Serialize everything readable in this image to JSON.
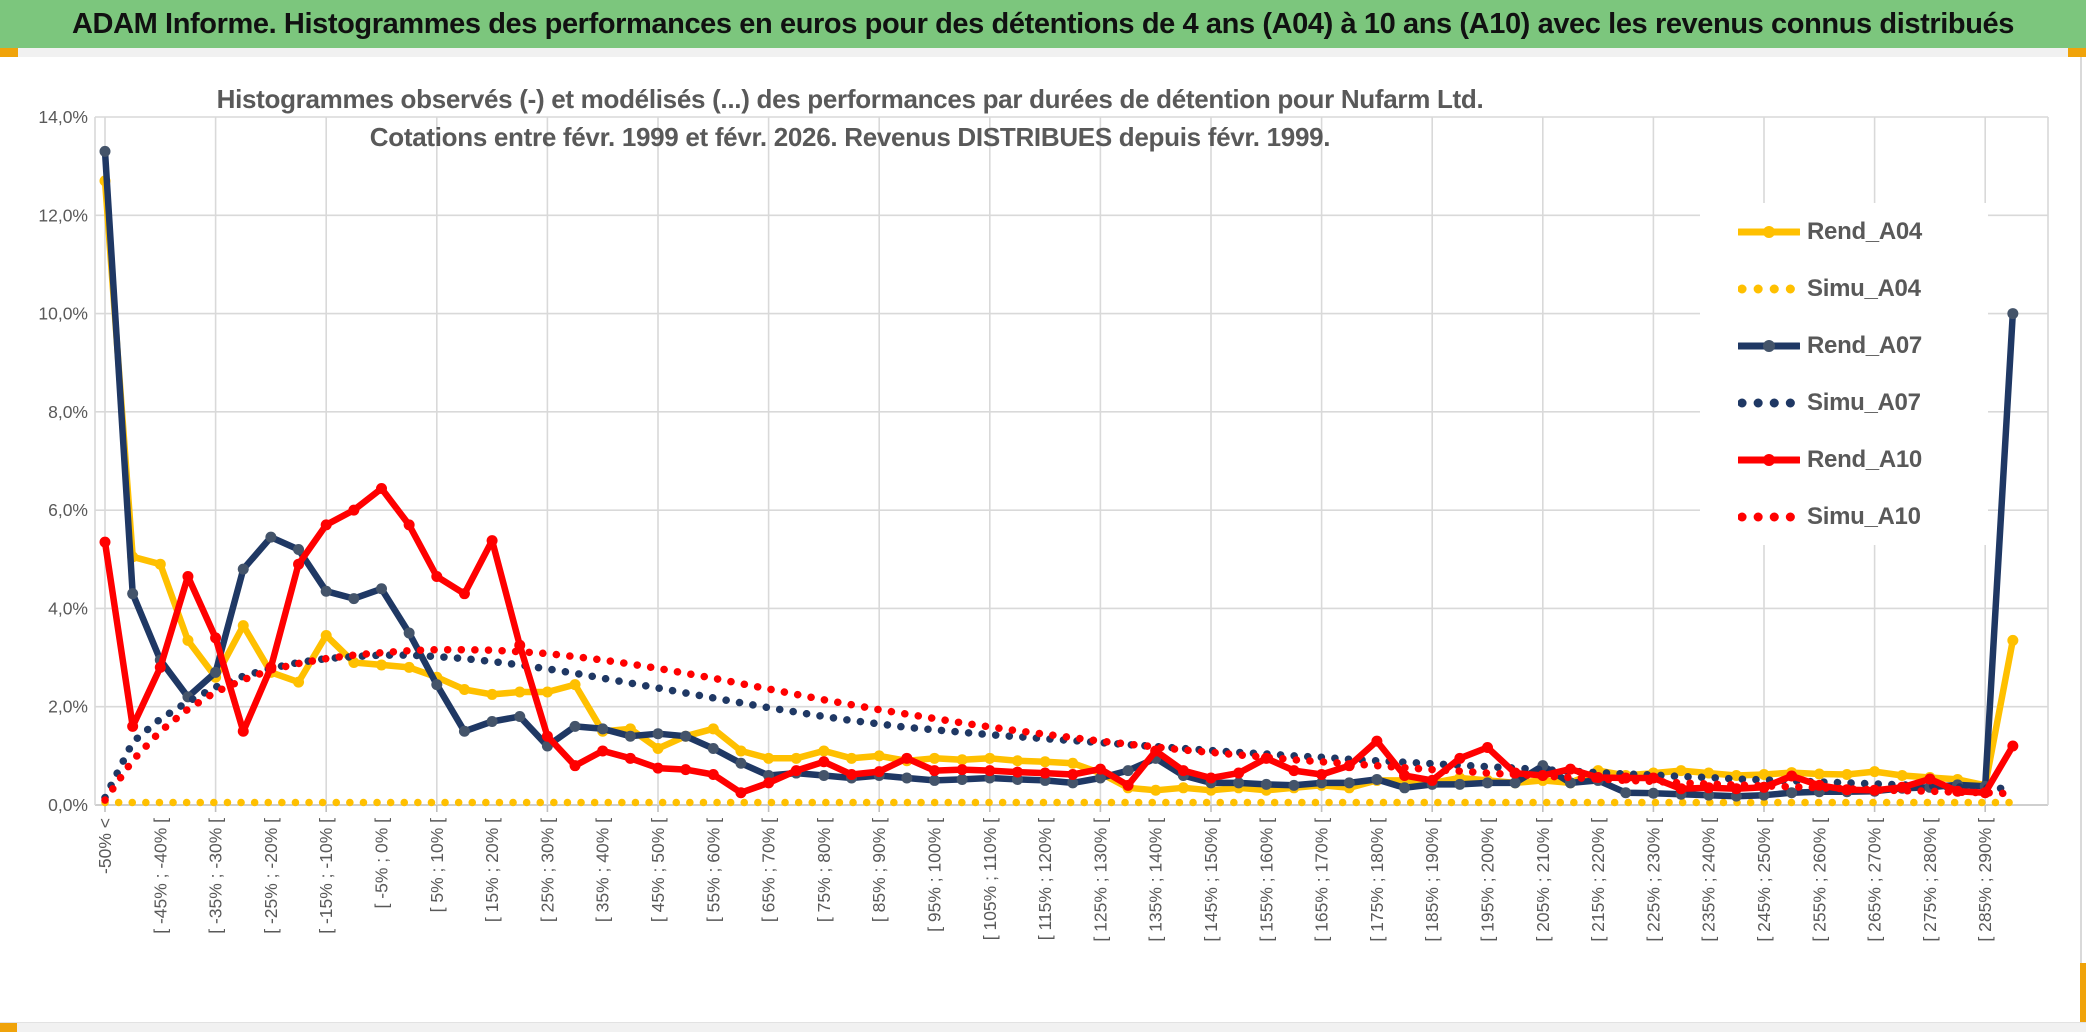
{
  "header": {
    "title": "ADAM Informe. Histogrammes des performances en euros pour des détentions de 4 ans (A04) à 10 ans (A10) avec les revenus connus distribués"
  },
  "accents": {
    "header_green": "#7CC67D",
    "gold_accent": "#F0A30A",
    "grid_gray": "#D9D9D9",
    "axis_gray": "#BFBFBF",
    "text_gray": "#595959"
  },
  "chart_data": {
    "type": "line",
    "title_line1": "Histogrammes observés (-) et modélisés (...) des performances par durées de détention pour Nufarm Ltd.",
    "title_line2": "Cotations entre févr. 1999 et févr. 2026. Revenus DISTRIBUES depuis févr. 1999.",
    "ylabel": "",
    "xlabel": "",
    "ylim": [
      0,
      14
    ],
    "grid": true,
    "legend_position": "right",
    "y_ticks": [
      "0,0%",
      "2,0%",
      "4,0%",
      "6,0%",
      "8,0%",
      "10,0%",
      "12,0%",
      "14,0%"
    ],
    "n_bins": 70,
    "categories_note": "35 labels shown on every other bin (bins 1,3,5,...,69 of 70); last bin (>=290%) unlabeled",
    "categories": [
      "-50% <",
      "[ -45% ; -40% [",
      "[ -35% ; -30% [",
      "[ -25% ; -20% [",
      "[ -15% ; -10% [",
      "[ -5% ; 0% [",
      "[ 5% ; 10% [",
      "[ 15% ; 20% [",
      "[ 25% ; 30% [",
      "[ 35% ; 40% [",
      "[ 45% ; 50% [",
      "[ 55% ; 60% [",
      "[ 65% ; 70% [",
      "[ 75% ; 80% [",
      "[ 85% ; 90% [",
      "[ 95% ; 100% [",
      "[ 105% ; 110% [",
      "[ 115% ; 120% [",
      "[ 125% ; 130% [",
      "[ 135% ; 140% [",
      "[ 145% ; 150% [",
      "[ 155% ; 160% [",
      "[ 165% ; 170% [",
      "[ 175% ; 180% [",
      "[ 185% ; 190% [",
      "[ 195% ; 200% [",
      "[ 205% ; 210% [",
      "[ 215% ; 220% [",
      "[ 225% ; 230% [",
      "[ 235% ; 240% [",
      "[ 245% ; 250% [",
      "[ 255% ; 260% [",
      "[ 265% ; 270% [",
      "[ 275% ; 280% [",
      "[ 285% ; 290% ["
    ],
    "series": [
      {
        "name": "Rend_A04",
        "style": "solid",
        "color": "#FFC000",
        "marker": "#FFC000",
        "values": [
          12.7,
          5.05,
          4.9,
          3.35,
          2.6,
          3.65,
          2.7,
          2.5,
          3.45,
          2.9,
          2.85,
          2.8,
          2.6,
          2.35,
          2.25,
          2.3,
          2.3,
          2.45,
          1.5,
          1.55,
          1.15,
          1.4,
          1.55,
          1.1,
          0.95,
          0.95,
          1.1,
          0.95,
          1.0,
          0.9,
          0.95,
          0.92,
          0.95,
          0.9,
          0.88,
          0.85,
          0.65,
          0.35,
          0.3,
          0.35,
          0.3,
          0.35,
          0.3,
          0.35,
          0.4,
          0.35,
          0.5,
          0.5,
          0.45,
          0.55,
          0.5,
          0.45,
          0.5,
          0.45,
          0.7,
          0.6,
          0.65,
          0.7,
          0.65,
          0.6,
          0.62,
          0.66,
          0.63,
          0.62,
          0.68,
          0.6,
          0.56,
          0.52,
          0.4,
          3.35
        ]
      },
      {
        "name": "Simu_A04",
        "style": "dotted",
        "color": "#FFC000",
        "marker": "#FFC000",
        "values": [
          0.05,
          0.05,
          0.05,
          0.05,
          0.05,
          0.05,
          0.05,
          0.05,
          0.05,
          0.05,
          0.05,
          0.05,
          0.05,
          0.05,
          0.05,
          0.05,
          0.05,
          0.05,
          0.05,
          0.05,
          0.05,
          0.05,
          0.05,
          0.05,
          0.05,
          0.05,
          0.05,
          0.05,
          0.05,
          0.05,
          0.05,
          0.05,
          0.05,
          0.05,
          0.05,
          0.05,
          0.05,
          0.05,
          0.05,
          0.05,
          0.05,
          0.05,
          0.05,
          0.05,
          0.05,
          0.05,
          0.05,
          0.05,
          0.05,
          0.05,
          0.05,
          0.05,
          0.05,
          0.05,
          0.05,
          0.05,
          0.05,
          0.05,
          0.05,
          0.05,
          0.05,
          0.05,
          0.05,
          0.05,
          0.05,
          0.05,
          0.05,
          0.05,
          0.05,
          0.05
        ]
      },
      {
        "name": "Rend_A07",
        "style": "solid",
        "color": "#1F3864",
        "marker": "#44546A",
        "values": [
          13.3,
          4.3,
          2.95,
          2.2,
          2.7,
          4.8,
          5.45,
          5.2,
          4.35,
          4.2,
          4.4,
          3.5,
          2.45,
          1.5,
          1.7,
          1.8,
          1.2,
          1.6,
          1.55,
          1.4,
          1.45,
          1.4,
          1.15,
          0.85,
          0.6,
          0.65,
          0.6,
          0.55,
          0.6,
          0.55,
          0.5,
          0.52,
          0.55,
          0.52,
          0.5,
          0.45,
          0.55,
          0.7,
          0.95,
          0.6,
          0.45,
          0.45,
          0.42,
          0.4,
          0.45,
          0.45,
          0.52,
          0.35,
          0.42,
          0.42,
          0.45,
          0.45,
          0.8,
          0.45,
          0.5,
          0.25,
          0.24,
          0.22,
          0.2,
          0.18,
          0.2,
          0.25,
          0.27,
          0.27,
          0.28,
          0.34,
          0.36,
          0.41,
          0.38,
          10.0
        ]
      },
      {
        "name": "Simu_A07",
        "style": "dotted",
        "color": "#1F3864",
        "marker": "#1F3864",
        "values": [
          0.15,
          1.28,
          1.75,
          2.1,
          2.4,
          2.62,
          2.78,
          2.9,
          2.98,
          3.02,
          3.05,
          3.05,
          3.02,
          2.98,
          2.92,
          2.85,
          2.77,
          2.68,
          2.58,
          2.48,
          2.38,
          2.28,
          2.18,
          2.08,
          1.98,
          1.89,
          1.8,
          1.72,
          1.65,
          1.58,
          1.53,
          1.48,
          1.43,
          1.39,
          1.35,
          1.31,
          1.27,
          1.23,
          1.19,
          1.15,
          1.11,
          1.07,
          1.04,
          1.0,
          0.97,
          0.93,
          0.9,
          0.87,
          0.84,
          0.81,
          0.78,
          0.75,
          0.72,
          0.69,
          0.66,
          0.63,
          0.61,
          0.58,
          0.56,
          0.53,
          0.51,
          0.49,
          0.47,
          0.45,
          0.43,
          0.41,
          0.39,
          0.37,
          0.35,
          0.33
        ]
      },
      {
        "name": "Rend_A10",
        "style": "solid",
        "color": "#FF0000",
        "marker": "#FF0000",
        "values": [
          5.35,
          1.6,
          2.8,
          4.65,
          3.4,
          1.5,
          2.8,
          4.9,
          5.7,
          6.0,
          6.44,
          5.7,
          4.65,
          4.3,
          5.38,
          3.25,
          1.4,
          0.8,
          1.1,
          0.95,
          0.75,
          0.72,
          0.62,
          0.25,
          0.45,
          0.7,
          0.88,
          0.62,
          0.68,
          0.95,
          0.7,
          0.72,
          0.7,
          0.67,
          0.65,
          0.62,
          0.73,
          0.4,
          1.1,
          0.7,
          0.55,
          0.65,
          0.95,
          0.7,
          0.62,
          0.8,
          1.3,
          0.6,
          0.5,
          0.95,
          1.17,
          0.65,
          0.6,
          0.73,
          0.56,
          0.55,
          0.55,
          0.33,
          0.35,
          0.33,
          0.36,
          0.59,
          0.4,
          0.31,
          0.3,
          0.36,
          0.53,
          0.28,
          0.25,
          1.2
        ]
      },
      {
        "name": "Simu_A10",
        "style": "dotted",
        "color": "#FF0000",
        "marker": "#FF0000",
        "values": [
          0.1,
          0.91,
          1.5,
          1.95,
          2.3,
          2.55,
          2.75,
          2.88,
          2.98,
          3.05,
          3.1,
          3.14,
          3.16,
          3.16,
          3.15,
          3.12,
          3.08,
          3.02,
          2.95,
          2.87,
          2.78,
          2.68,
          2.58,
          2.47,
          2.36,
          2.25,
          2.14,
          2.04,
          1.94,
          1.85,
          1.76,
          1.67,
          1.59,
          1.51,
          1.44,
          1.37,
          1.3,
          1.24,
          1.18,
          1.12,
          1.07,
          1.02,
          0.97,
          0.92,
          0.88,
          0.84,
          0.8,
          0.76,
          0.72,
          0.69,
          0.65,
          0.62,
          0.59,
          0.56,
          0.53,
          0.5,
          0.48,
          0.45,
          0.43,
          0.41,
          0.39,
          0.37,
          0.35,
          0.33,
          0.31,
          0.29,
          0.28,
          0.26,
          0.25,
          0.23
        ]
      }
    ]
  }
}
